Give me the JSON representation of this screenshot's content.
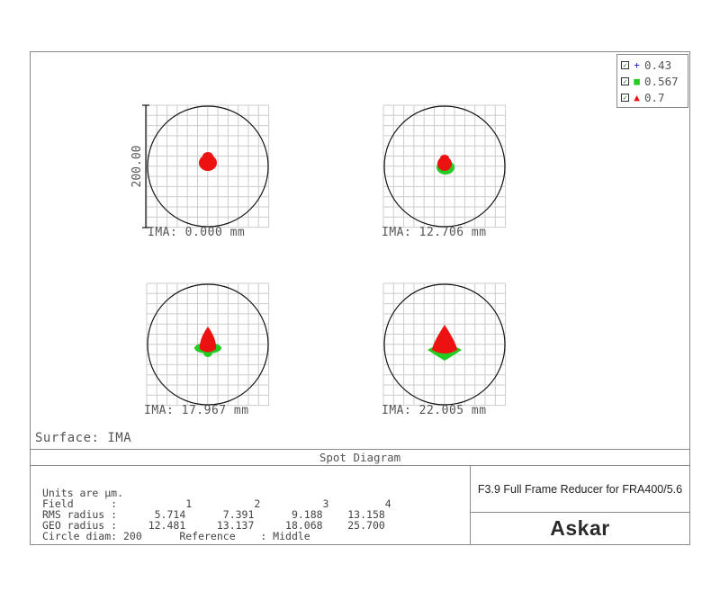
{
  "chart_data": {
    "type": "scatter",
    "title": "Spot Diagram",
    "surface_label": "Surface: IMA",
    "scale_bar_label": "200.00",
    "legend": [
      {
        "label": "0.43",
        "symbol": "+",
        "color": "#1a2aa8"
      },
      {
        "label": "0.567",
        "symbol": "■",
        "color": "#22cc22"
      },
      {
        "label": "0.7",
        "symbol": "▲",
        "color": "#ee1111"
      }
    ],
    "fields": [
      {
        "label": "IMA: 0.000 mm"
      },
      {
        "label": "IMA: 12.706 mm"
      },
      {
        "label": "IMA: 17.967 mm"
      },
      {
        "label": "IMA: 22.005 mm"
      }
    ],
    "colors": {
      "blue": "#1a2aa8",
      "green": "#22cc22",
      "red": "#ee1111",
      "grid": "#cccccc",
      "circle": "#111111"
    }
  },
  "info": {
    "line1": "Units are µm.",
    "line2": "Field      :           1          2          3         4",
    "line3": "RMS radius :      5.714      7.391      9.188    13.158",
    "line4": "GEO radius :     12.481     13.137     18.068    25.700",
    "line5": "Circle diam: 200      Reference    : Middle"
  },
  "reducer_title": "F3.9 Full Frame Reducer for FRA400/5.6",
  "logo_text": "Askar"
}
